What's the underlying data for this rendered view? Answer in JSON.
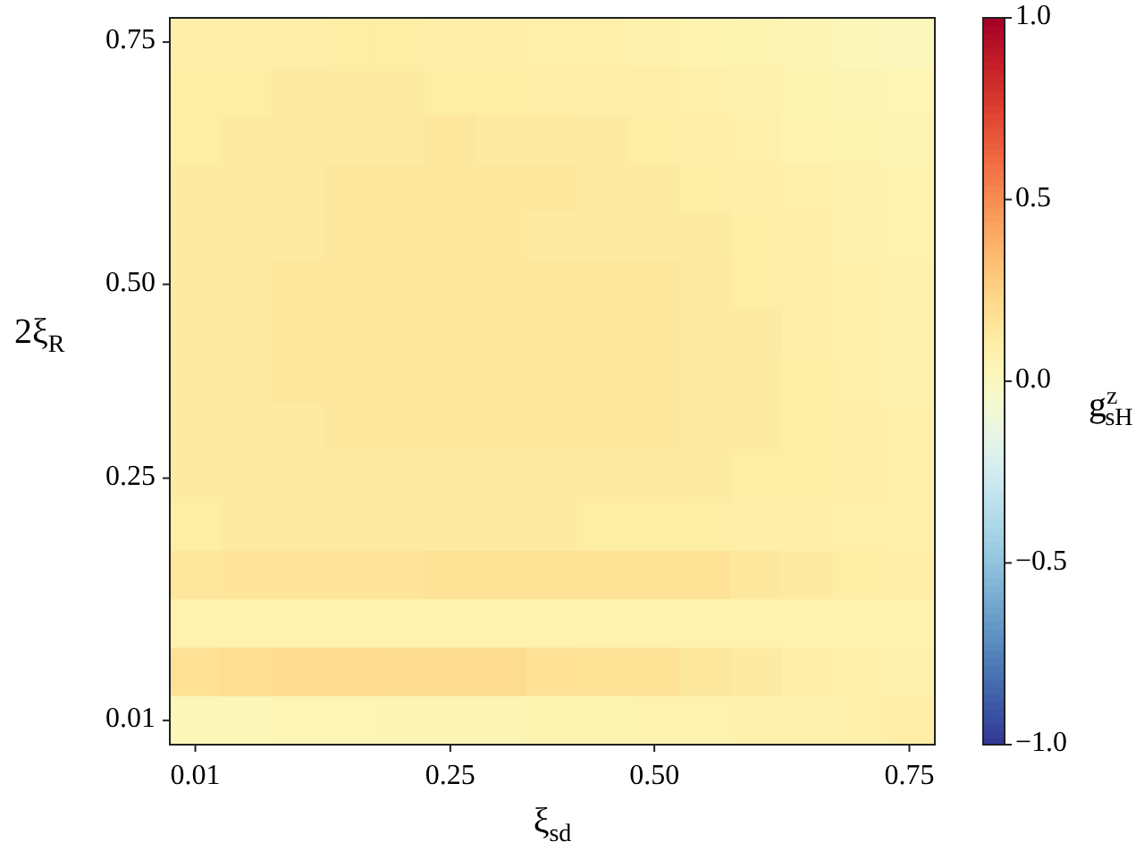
{
  "chart_data": {
    "type": "heatmap",
    "xlabel": "ξ$_{sd}$",
    "ylabel": "2ξ$_{R}$",
    "clabel": "g$^{z}$$_{sH}$",
    "categories": [
      "0.01",
      null,
      null,
      null,
      null,
      "0.25",
      null,
      null,
      null,
      "0.50",
      null,
      null,
      null,
      null,
      "0.75"
    ],
    "y_categories": [
      "0.75",
      null,
      null,
      null,
      null,
      "0.50",
      null,
      null,
      null,
      "0.25",
      null,
      null,
      null,
      null,
      "0.01"
    ],
    "clim": [
      -1,
      1
    ],
    "cticks": [
      {
        "value": -1,
        "label": "−1.0"
      },
      {
        "value": -0.5,
        "label": "−0.5"
      },
      {
        "value": 0,
        "label": "0.0"
      },
      0.5,
      {
        "value": 1,
        "label": "1.0"
      }
    ],
    "cells": [
      [
        0.1,
        0.1,
        0.1,
        0.11,
        0.11,
        0.1,
        0.1,
        0.09,
        0.09,
        0.08,
        0.07,
        0.06,
        0.05,
        0.03,
        0.02
      ],
      [
        0.11,
        0.11,
        0.12,
        0.12,
        0.12,
        0.11,
        0.11,
        0.1,
        0.1,
        0.1,
        0.09,
        0.08,
        0.06,
        0.05,
        0.04
      ],
      [
        0.11,
        0.12,
        0.13,
        0.13,
        0.13,
        0.14,
        0.13,
        0.13,
        0.12,
        0.11,
        0.1,
        0.09,
        0.07,
        0.06,
        0.05
      ],
      [
        0.12,
        0.12,
        0.13,
        0.14,
        0.14,
        0.14,
        0.14,
        0.14,
        0.13,
        0.12,
        0.11,
        0.1,
        0.09,
        0.08,
        0.07
      ],
      [
        0.12,
        0.13,
        0.13,
        0.14,
        0.14,
        0.14,
        0.14,
        0.13,
        0.13,
        0.12,
        0.12,
        0.11,
        0.1,
        0.08,
        0.07
      ],
      [
        0.12,
        0.13,
        0.14,
        0.15,
        0.15,
        0.15,
        0.15,
        0.14,
        0.14,
        0.14,
        0.13,
        0.11,
        0.1,
        0.09,
        0.08
      ],
      [
        0.12,
        0.13,
        0.14,
        0.15,
        0.15,
        0.15,
        0.15,
        0.15,
        0.14,
        0.14,
        0.13,
        0.12,
        0.1,
        0.09,
        0.08
      ],
      [
        0.12,
        0.13,
        0.14,
        0.15,
        0.15,
        0.15,
        0.15,
        0.15,
        0.15,
        0.14,
        0.13,
        0.12,
        0.11,
        0.09,
        0.08
      ],
      [
        0.12,
        0.13,
        0.13,
        0.14,
        0.14,
        0.14,
        0.14,
        0.14,
        0.14,
        0.14,
        0.13,
        0.12,
        0.11,
        0.1,
        0.09
      ],
      [
        0.12,
        0.12,
        0.13,
        0.13,
        0.13,
        0.13,
        0.13,
        0.13,
        0.13,
        0.13,
        0.12,
        0.11,
        0.11,
        0.1,
        0.09
      ],
      [
        0.11,
        0.12,
        0.12,
        0.12,
        0.12,
        0.12,
        0.12,
        0.12,
        0.11,
        0.11,
        0.11,
        0.1,
        0.1,
        0.09,
        0.09
      ],
      [
        0.15,
        0.16,
        0.16,
        0.16,
        0.16,
        0.17,
        0.17,
        0.17,
        0.17,
        0.17,
        0.17,
        0.14,
        0.13,
        0.11,
        0.1
      ],
      [
        0.07,
        0.07,
        0.07,
        0.07,
        0.07,
        0.07,
        0.07,
        0.07,
        0.07,
        0.07,
        0.07,
        0.07,
        0.07,
        0.07,
        0.07
      ],
      [
        0.18,
        0.19,
        0.21,
        0.21,
        0.2,
        0.2,
        0.2,
        0.18,
        0.17,
        0.17,
        0.14,
        0.12,
        0.1,
        0.09,
        0.08
      ],
      [
        0.03,
        0.03,
        0.04,
        0.04,
        0.05,
        0.05,
        0.05,
        0.06,
        0.06,
        0.07,
        0.07,
        0.08,
        0.08,
        0.09,
        0.1
      ]
    ]
  }
}
